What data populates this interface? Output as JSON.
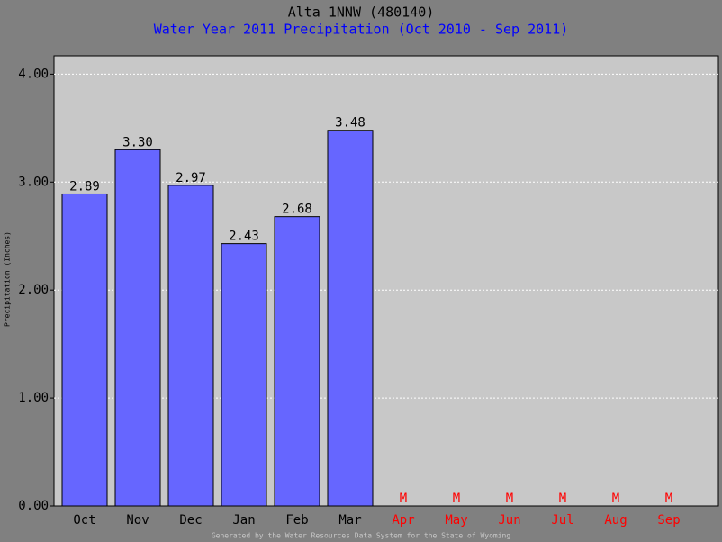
{
  "chart_data": {
    "type": "bar",
    "title": "Alta 1NNW (480140)",
    "subtitle": "Water Year 2011 Precipitation (Oct 2010 - Sep 2011)",
    "y_label": "Precipitation (Inches)",
    "footer": "Generated by the Water Resources Data System for the State of Wyoming",
    "categories": [
      "Oct",
      "Nov",
      "Dec",
      "Jan",
      "Feb",
      "Mar",
      "Apr",
      "May",
      "Jun",
      "Jul",
      "Aug",
      "Sep"
    ],
    "values": [
      2.89,
      3.3,
      2.97,
      2.43,
      2.68,
      3.48,
      null,
      null,
      null,
      null,
      null,
      null
    ],
    "value_labels": [
      "2.89",
      "3.30",
      "2.97",
      "2.43",
      "2.68",
      "3.48",
      "M",
      "M",
      "M",
      "M",
      "M",
      "M"
    ],
    "color": "#6666ff",
    "missing_color": "#ff0000",
    "ylim": [
      0,
      4.17
    ],
    "yticks": [
      {
        "value": 0,
        "label": "0.00"
      },
      {
        "value": 1,
        "label": "1.00"
      },
      {
        "value": 2,
        "label": "2.00"
      },
      {
        "value": 3,
        "label": "3.00"
      },
      {
        "value": 4,
        "label": "4.00"
      }
    ],
    "grid": true
  }
}
